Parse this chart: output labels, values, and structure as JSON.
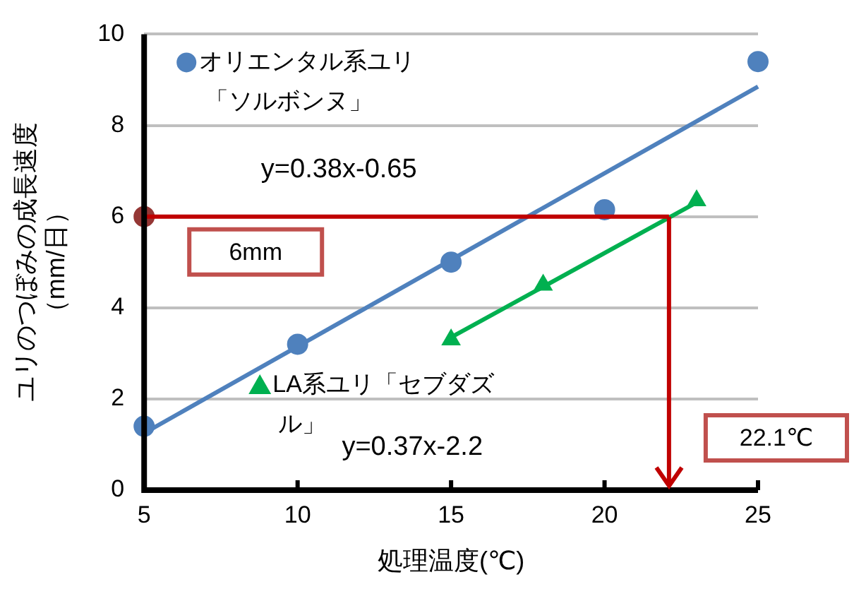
{
  "chart_data": {
    "type": "scatter",
    "xlabel": "処理温度(℃)",
    "ylabel": "ユリのつぼみの成長速度（mm/日）",
    "xlim": [
      5,
      25
    ],
    "xticks": [
      5,
      10,
      15,
      20,
      25
    ],
    "ylim": [
      0,
      10
    ],
    "yticks": [
      0,
      2,
      4,
      6,
      8,
      10
    ],
    "grid": "y",
    "legend": "top left",
    "series": [
      {
        "name": "オリエンタル系ユリ「ソルボンヌ」",
        "type": "scatter",
        "marker": "circle",
        "color": "#4f81bd",
        "x": [
          5,
          10,
          15,
          20,
          25
        ],
        "values": [
          1.4,
          3.2,
          5.0,
          6.15,
          9.4
        ]
      },
      {
        "type": "line",
        "marker": "none",
        "color": "#4f81bd",
        "x": [
          5,
          25
        ],
        "values": [
          1.25,
          8.85
        ]
      },
      {
        "name": "LA系ユリ「セブダズル」",
        "type": "scatter",
        "marker": "triangle",
        "color": "#00b050",
        "x": [
          15,
          18,
          23
        ],
        "values": [
          3.3,
          4.5,
          6.35
        ]
      },
      {
        "type": "line",
        "marker": "none",
        "color": "#00b050",
        "x": [
          15,
          23
        ],
        "values": [
          3.35,
          6.31
        ]
      },
      {
        "type": "scatter",
        "marker": "circle",
        "color": "#953735",
        "x": [
          5
        ],
        "values": [
          6
        ]
      }
    ],
    "ref_lines": [
      {
        "axis": "y",
        "value": 6,
        "label": "6mm",
        "color": "#c00000"
      },
      {
        "axis": "x",
        "value": 22.1,
        "label": "22.1℃",
        "color": "#c00000"
      }
    ],
    "annotations": [
      "y=0.38x-0.65",
      "y=0.37x-2.2"
    ]
  }
}
